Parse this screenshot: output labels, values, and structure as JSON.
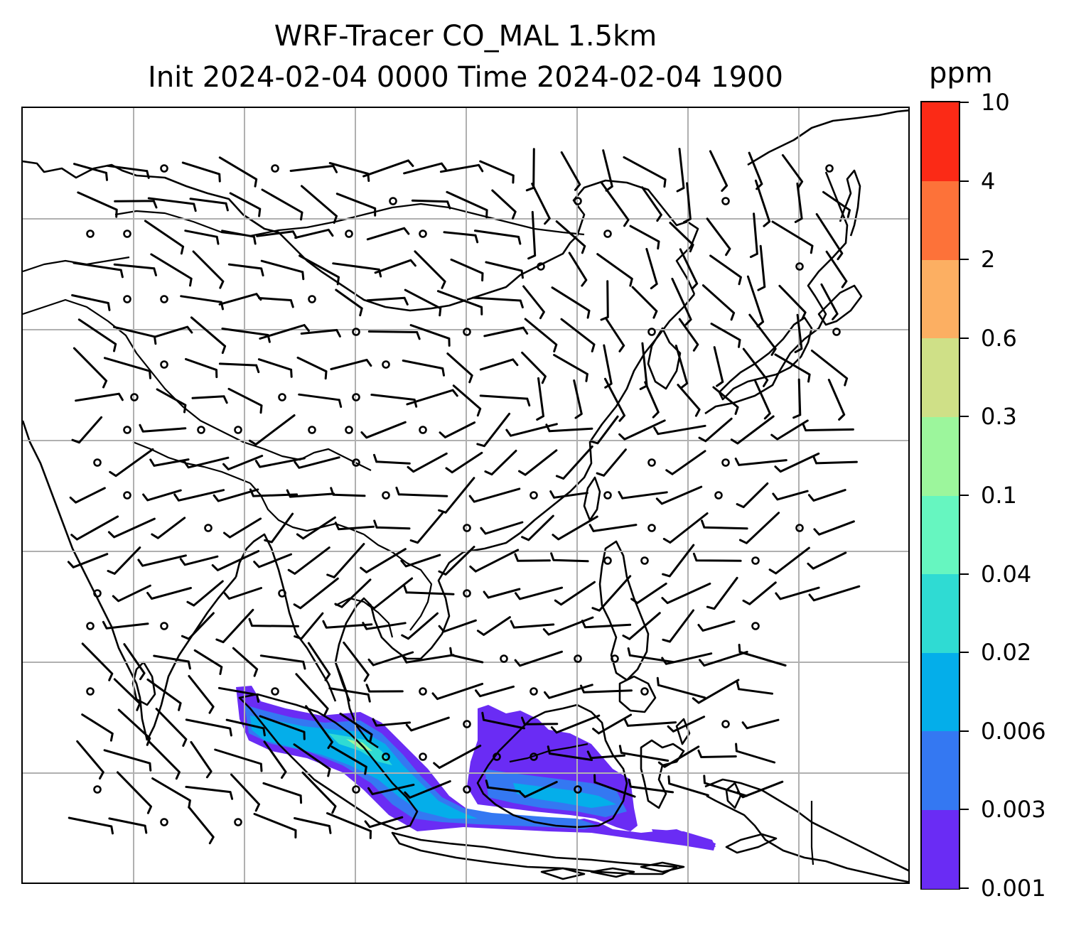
{
  "title_line1": "WRF-Tracer CO_MAL 1.5km",
  "title_line2": "Init 2024-02-04 0000 Time 2024-02-04 1900",
  "colorbar": {
    "unit": "ppm",
    "levels": [
      "0.001",
      "0.003",
      "0.006",
      "0.02",
      "0.04",
      "0.1",
      "0.3",
      "0.6",
      "2",
      "4",
      "10"
    ],
    "colors": [
      "#6a2cf4",
      "#3478f2",
      "#04aeea",
      "#2fdbd3",
      "#66f6c0",
      "#9cf69c",
      "#cfe087",
      "#fcaf62",
      "#fd7239",
      "#fb2a16"
    ]
  },
  "map": {
    "gridlines": true,
    "features": [
      "coastlines",
      "country-borders",
      "wind-barbs",
      "tracer-concentration"
    ]
  }
}
